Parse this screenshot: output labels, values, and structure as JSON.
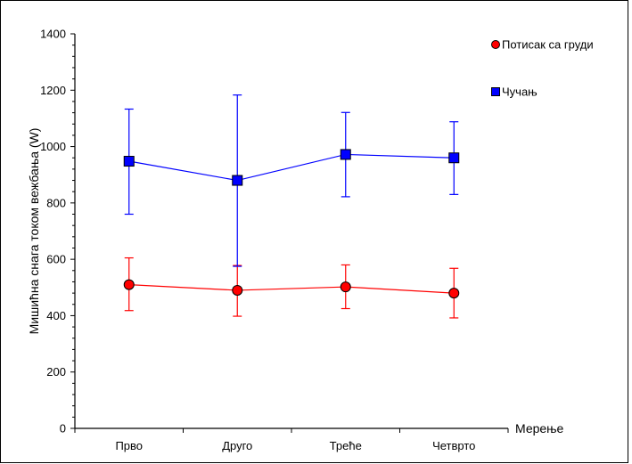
{
  "chart_data": {
    "type": "line",
    "categories": [
      "Прво",
      "Друго",
      "Треће",
      "Четврто"
    ],
    "ylabel": "Мишићна снага током вежбања (W)",
    "xlabel": "Мерење",
    "ylim": [
      0,
      1400
    ],
    "yticks": [
      0,
      200,
      400,
      600,
      800,
      1000,
      1200,
      1400
    ],
    "grid": false,
    "legend_position": "top-right",
    "series": [
      {
        "name": "Потисак са груди",
        "color": "#ff0000",
        "marker": "circle",
        "values": [
          510,
          490,
          502,
          480
        ],
        "error_low": [
          418,
          398,
          425,
          392
        ],
        "error_high": [
          605,
          578,
          580,
          568
        ]
      },
      {
        "name": "Чучањ",
        "color": "#0000ff",
        "marker": "square",
        "values": [
          948,
          880,
          972,
          960
        ],
        "error_low": [
          760,
          575,
          822,
          830
        ],
        "error_high": [
          1133,
          1183,
          1121,
          1088
        ]
      }
    ]
  }
}
